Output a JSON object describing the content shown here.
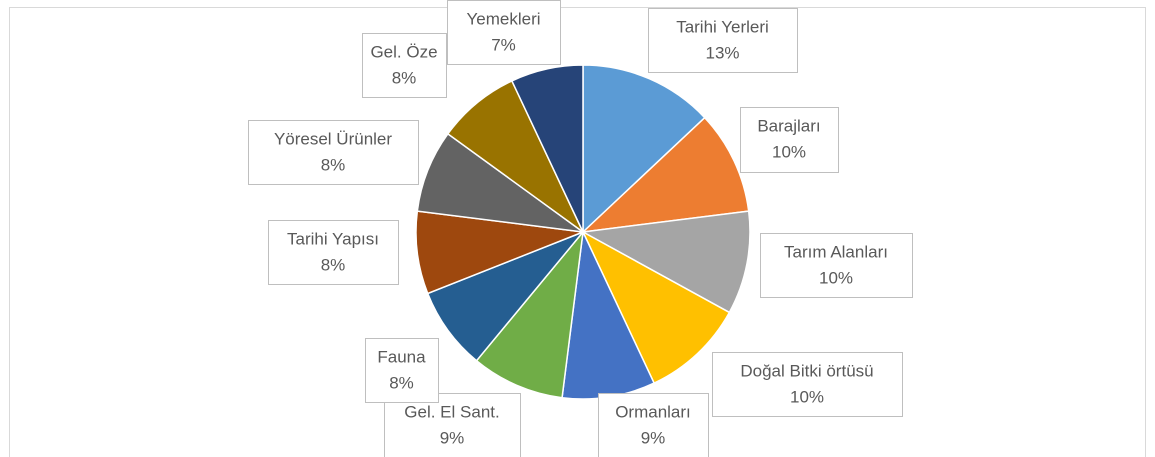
{
  "chart_data": {
    "type": "pie",
    "categories": [
      "Tarihi Yerleri",
      "Barajları",
      "Tarım Alanları",
      "Doğal Bitki örtüsü",
      "Ormanları",
      "Gel. El Sant.",
      "Fauna",
      "Tarihi Yapısı",
      "Yöresel Ürünler",
      "Gel. Öze",
      "Yemekleri"
    ],
    "values": [
      13,
      10,
      10,
      10,
      9,
      9,
      8,
      8,
      8,
      8,
      7
    ],
    "value_labels": [
      "13%",
      "10%",
      "10%",
      "10%",
      "9%",
      "9%",
      "8%",
      "8%",
      "8%",
      "8%",
      "7%"
    ],
    "colors": [
      "#5b9bd5",
      "#ed7d31",
      "#a5a5a5",
      "#ffc000",
      "#4472c4",
      "#70ad47",
      "#255e91",
      "#9e480e",
      "#636363",
      "#997300",
      "#264478"
    ]
  }
}
